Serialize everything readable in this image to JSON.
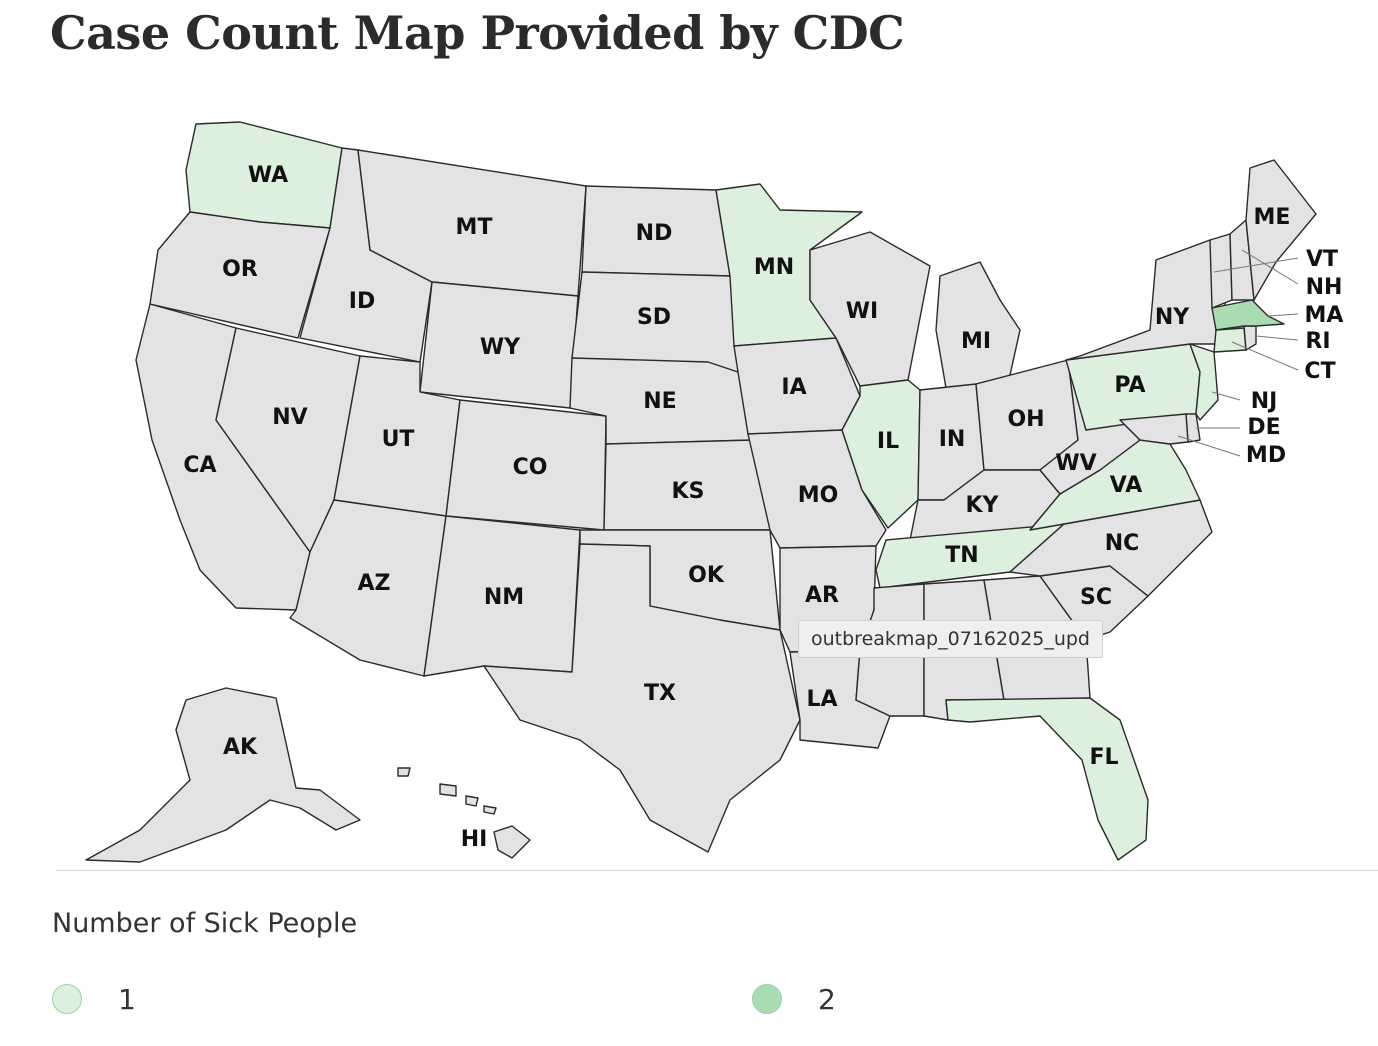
{
  "title": "Case Count Map Provided by CDC",
  "tooltip": "outbreakmap_07162025_upd",
  "colors": {
    "none": "#e3e3e5",
    "one": "#dcf0dd",
    "two": "#a9dcb2",
    "border": "#2a2a2a"
  },
  "legend": {
    "title": "Number of Sick People",
    "items": [
      {
        "label": "1",
        "color": "#dcf0dd"
      },
      {
        "label": "2",
        "color": "#a9dcb2"
      }
    ]
  },
  "states": {
    "WA": 1,
    "OR": 0,
    "CA": 0,
    "ID": 0,
    "NV": 0,
    "MT": 0,
    "WY": 0,
    "UT": 0,
    "AZ": 0,
    "CO": 0,
    "NM": 0,
    "ND": 0,
    "SD": 0,
    "NE": 0,
    "KS": 0,
    "OK": 0,
    "TX": 0,
    "MN": 1,
    "IA": 0,
    "MO": 0,
    "AR": 0,
    "LA": 0,
    "WI": 0,
    "IL": 1,
    "MI": 0,
    "IN": 0,
    "OH": 0,
    "KY": 0,
    "TN": 1,
    "MS": 0,
    "AL": 0,
    "GA": 0,
    "FL": 1,
    "SC": 0,
    "NC": 0,
    "VA": 1,
    "WV": 0,
    "PA": 1,
    "NY": 0,
    "VT": 0,
    "NH": 0,
    "ME": 0,
    "MA": 2,
    "RI": 0,
    "CT": 1,
    "NJ": 1,
    "DE": 0,
    "MD": 0,
    "AK": 0,
    "HI": 0
  },
  "labels": {
    "WA": "WA",
    "OR": "OR",
    "CA": "CA",
    "ID": "ID",
    "NV": "NV",
    "MT": "MT",
    "WY": "WY",
    "UT": "UT",
    "AZ": "AZ",
    "CO": "CO",
    "NM": "NM",
    "ND": "ND",
    "SD": "SD",
    "NE": "NE",
    "KS": "KS",
    "OK": "OK",
    "TX": "TX",
    "MN": "MN",
    "IA": "IA",
    "MO": "MO",
    "AR": "AR",
    "LA": "LA",
    "WI": "WI",
    "IL": "IL",
    "MI": "MI",
    "IN": "IN",
    "OH": "OH",
    "KY": "KY",
    "TN": "TN",
    "NC": "NC",
    "SC": "SC",
    "VA": "VA",
    "WV": "WV",
    "PA": "PA",
    "NY": "NY",
    "FL": "FL",
    "ME": "ME",
    "VT": "VT",
    "NH": "NH",
    "MA": "MA",
    "RI": "RI",
    "CT": "CT",
    "NJ": "NJ",
    "DE": "DE",
    "MD": "MD",
    "AK": "AK",
    "HI": "HI"
  }
}
